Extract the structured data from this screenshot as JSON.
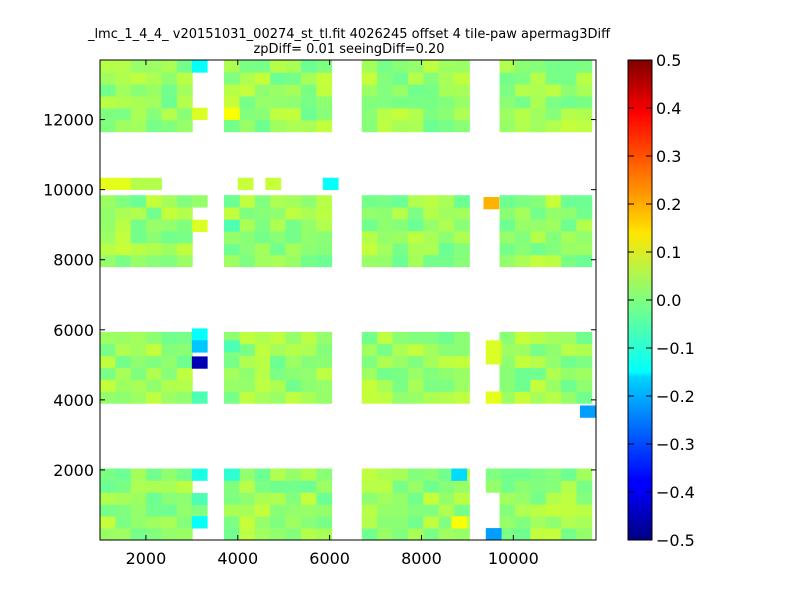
{
  "chart_data": {
    "type": "heatmap",
    "title": "_lmc_1_4_4_ v20151031_00274_st_tl.fit 4026245 offset 4 tile-paw apermag3Diff",
    "subtitle": "zpDiff= 0.01 seeingDiff=0.20",
    "xlabel": "",
    "ylabel": "",
    "xlim": [
      1000,
      11800
    ],
    "ylim": [
      0,
      13700
    ],
    "x_ticks": [
      2000,
      4000,
      6000,
      8000,
      10000
    ],
    "y_ticks": [
      2000,
      4000,
      6000,
      8000,
      10000,
      12000
    ],
    "colorbar": {
      "colormap": "jet",
      "range": [
        -0.5,
        0.5
      ],
      "ticks": [
        "0.5",
        "0.4",
        "0.3",
        "0.2",
        "0.1",
        "0.0",
        "−0.1",
        "−0.2",
        "−0.3",
        "−0.4",
        "−0.5"
      ]
    },
    "cell_size": [
      335,
      340
    ],
    "column_blocks": [
      {
        "x_start": 1000,
        "cols": 6
      },
      {
        "x_start": 3700,
        "cols": 7
      },
      {
        "x_start": 6700,
        "cols": 7
      },
      {
        "x_start": 9700,
        "cols": 6
      }
    ],
    "gap_columns": [
      {
        "x_start": 3000,
        "cols": 1
      },
      {
        "x_start": 9400,
        "cols": 1
      }
    ],
    "row_blocks": [
      {
        "y_start": 0,
        "rows": 6
      },
      {
        "y_start": 3900,
        "rows": 6
      },
      {
        "y_start": 7800,
        "rows": 6
      },
      {
        "y_start": 11650,
        "rows": 6
      }
    ],
    "base_value": 0.02,
    "base_value_range": [
      -0.02,
      0.07
    ],
    "gap_cells": [
      {
        "x": 3000,
        "y": 13350,
        "value": -0.12
      },
      {
        "x": 3000,
        "y": 12000,
        "value": 0.09
      },
      {
        "x": 3700,
        "y": 13010,
        "value": 0.0
      },
      {
        "x": 3700,
        "y": 12000,
        "value": 0.12
      },
      {
        "x": 3000,
        "y": 9500,
        "value": 0.02
      },
      {
        "x": 3000,
        "y": 8800,
        "value": 0.09
      },
      {
        "x": 3700,
        "y": 9500,
        "value": -0.02
      },
      {
        "x": 3700,
        "y": 8800,
        "value": -0.05
      },
      {
        "x": 3700,
        "y": 8460,
        "value": 0.02
      },
      {
        "x": 3000,
        "y": 5700,
        "value": -0.12
      },
      {
        "x": 3000,
        "y": 5360,
        "value": -0.18
      },
      {
        "x": 3000,
        "y": 4900,
        "value": -0.45
      },
      {
        "x": 3000,
        "y": 3900,
        "value": -0.05
      },
      {
        "x": 3700,
        "y": 5360,
        "value": -0.05
      },
      {
        "x": 9400,
        "y": 5360,
        "value": 0.09
      },
      {
        "x": 9400,
        "y": 5020,
        "value": 0.09
      },
      {
        "x": 9400,
        "y": 3900,
        "value": 0.1
      },
      {
        "x": 3000,
        "y": 1700,
        "value": -0.1
      },
      {
        "x": 3000,
        "y": 1000,
        "value": -0.05
      },
      {
        "x": 3000,
        "y": 650,
        "value": 0.0
      },
      {
        "x": 3000,
        "y": 340,
        "value": -0.12
      },
      {
        "x": 3700,
        "y": 1700,
        "value": -0.08
      },
      {
        "x": 9400,
        "y": 1700,
        "value": 0.0
      },
      {
        "x": 9400,
        "y": 1360,
        "value": 0.02
      },
      {
        "x": 9400,
        "y": 0,
        "value": -0.22
      }
    ],
    "special_cells": [
      {
        "x": 8650,
        "y": 1700,
        "value": -0.16
      },
      {
        "x": 8650,
        "y": 340,
        "value": 0.12
      },
      {
        "x": 11450,
        "y": 3500,
        "value": -0.22
      },
      {
        "x": 9350,
        "y": 9450,
        "value": 0.2
      },
      {
        "x": 1000,
        "y": 10000,
        "value": 0.1
      },
      {
        "x": 1335,
        "y": 10000,
        "value": 0.1
      },
      {
        "x": 1670,
        "y": 10000,
        "value": 0.05
      },
      {
        "x": 2005,
        "y": 10000,
        "value": 0.05
      },
      {
        "x": 4000,
        "y": 10000,
        "value": 0.07
      },
      {
        "x": 4600,
        "y": 10000,
        "value": 0.07
      },
      {
        "x": 5850,
        "y": 10000,
        "value": -0.12
      }
    ]
  }
}
